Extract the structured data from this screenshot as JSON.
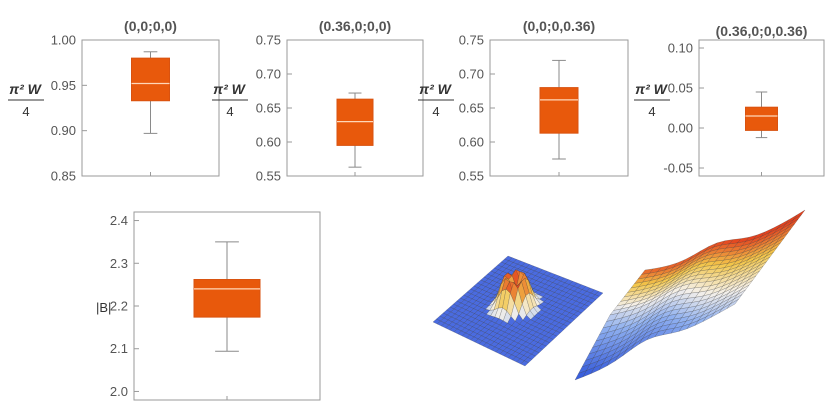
{
  "chart_data": [
    {
      "type": "box",
      "title": "(0,0;0,0)",
      "ylabel": {
        "prefix": "π² W",
        "denominator": "4"
      },
      "ylim": [
        0.85,
        1.0
      ],
      "yticks": [
        0.85,
        0.9,
        0.95,
        1.0
      ],
      "tick_labels": [
        "0.85",
        "0.90",
        "0.95",
        "1.00"
      ],
      "box": {
        "min": 0.897,
        "q1": 0.933,
        "median": 0.952,
        "q3": 0.98,
        "max": 0.987
      },
      "color": "#e8590c"
    },
    {
      "type": "box",
      "title": "(0.36,0;0,0)",
      "ylabel": {
        "prefix": "π² W",
        "denominator": "4"
      },
      "ylim": [
        0.55,
        0.75
      ],
      "yticks": [
        0.55,
        0.6,
        0.65,
        0.7,
        0.75
      ],
      "tick_labels": [
        "0.55",
        "0.60",
        "0.65",
        "0.70",
        "0.75"
      ],
      "box": {
        "min": 0.563,
        "q1": 0.595,
        "median": 0.63,
        "q3": 0.663,
        "max": 0.672
      },
      "color": "#e8590c"
    },
    {
      "type": "box",
      "title": "(0,0;0,0.36)",
      "ylabel": {
        "prefix": "π² W",
        "denominator": "4"
      },
      "ylim": [
        0.55,
        0.75
      ],
      "yticks": [
        0.55,
        0.6,
        0.65,
        0.7,
        0.75
      ],
      "tick_labels": [
        "0.55",
        "0.60",
        "0.65",
        "0.70",
        "0.75"
      ],
      "box": {
        "min": 0.575,
        "q1": 0.613,
        "median": 0.662,
        "q3": 0.68,
        "max": 0.72
      },
      "color": "#e8590c"
    },
    {
      "type": "box",
      "title": "(0.36,0;0,0.36)",
      "ylabel": {
        "prefix": "π² W",
        "denominator": "4"
      },
      "ylim": [
        -0.06,
        0.11
      ],
      "yticks": [
        -0.05,
        0.0,
        0.05,
        0.1
      ],
      "tick_labels": [
        "-0.05",
        "0.00",
        "0.05",
        "0.10"
      ],
      "box": {
        "min": -0.012,
        "q1": -0.003,
        "median": 0.015,
        "q3": 0.026,
        "max": 0.045
      },
      "color": "#e8590c"
    },
    {
      "type": "box",
      "title": "",
      "ylabel": {
        "prefix": "|B|",
        "denominator": ""
      },
      "ylim": [
        1.98,
        2.42
      ],
      "yticks": [
        2.0,
        2.1,
        2.2,
        2.3,
        2.4
      ],
      "tick_labels": [
        "2.0",
        "2.1",
        "2.2",
        "2.3",
        "2.4"
      ],
      "box": {
        "min": 2.094,
        "q1": 2.174,
        "median": 2.24,
        "q3": 2.262,
        "max": 2.35
      },
      "color": "#e8590c"
    }
  ],
  "surfaces": [
    {
      "kind": "ring-peak"
    },
    {
      "kind": "saddle-ridge"
    }
  ]
}
